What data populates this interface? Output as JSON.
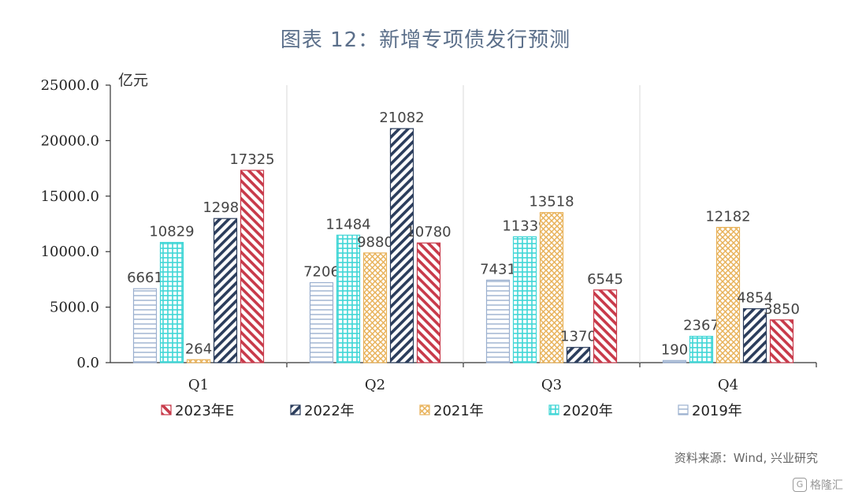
{
  "title": "图表 12：新增专项债发行预测",
  "source": "资料来源：Wind, 兴业研究",
  "watermark": "格隆汇",
  "chart_data": {
    "type": "bar",
    "unit_label": "亿元",
    "categories": [
      "Q1",
      "Q2",
      "Q3",
      "Q4"
    ],
    "ylim": [
      0,
      25000
    ],
    "yticks": [
      0,
      5000,
      10000,
      15000,
      20000,
      25000
    ],
    "ytick_labels": [
      "0.0",
      "5000.0",
      "10000.0",
      "15000.0",
      "20000.0",
      "25000.0"
    ],
    "grid": "vertical category separators",
    "legend_position": "bottom",
    "series": [
      {
        "name": "2019年",
        "values": [
          6661,
          7206,
          7431,
          190
        ],
        "color": "#9bb0cf",
        "pattern": "horizontal-lines"
      },
      {
        "name": "2020年",
        "values": [
          10829,
          11484,
          11339,
          2367
        ],
        "color": "#3fd6d6",
        "pattern": "grid"
      },
      {
        "name": "2021年",
        "values": [
          264,
          9880,
          13518,
          12182
        ],
        "color": "#e8b25a",
        "pattern": "crosshatch"
      },
      {
        "name": "2022年",
        "values": [
          12981,
          21082,
          1370,
          4854
        ],
        "color": "#2b3d5c",
        "pattern": "diagonal-up"
      },
      {
        "name": "2023年E",
        "values": [
          17325,
          10780,
          6545,
          3850
        ],
        "color": "#c83a4a",
        "pattern": "diagonal-down"
      }
    ],
    "legend_order": [
      "2023年E",
      "2022年",
      "2021年",
      "2020年",
      "2019年"
    ]
  }
}
